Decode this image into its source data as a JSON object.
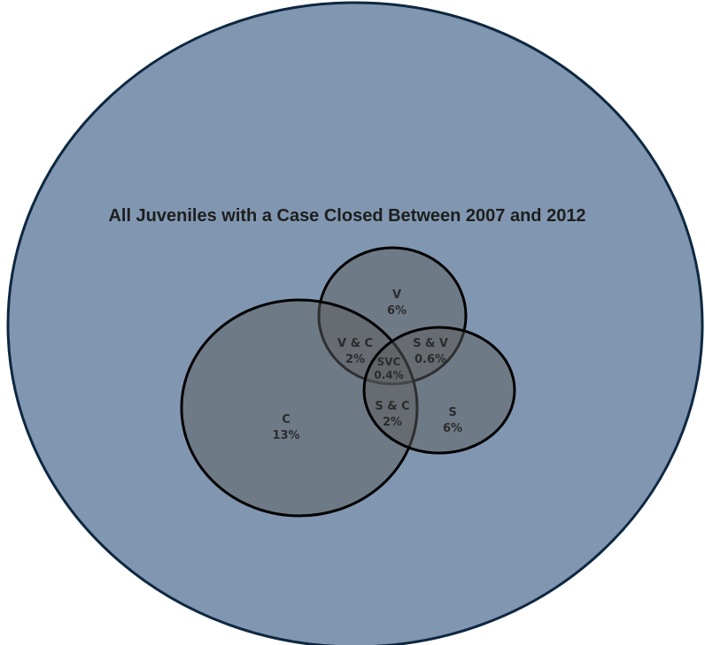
{
  "title": "All Juveniles with a Case Closed Between 2007 and 2012",
  "colors": {
    "universe_fill": "#8197b1",
    "universe_stroke": "#0e2841",
    "set_fill": "#5e5e5e",
    "set_stroke": "#000000",
    "text": "#2b2b2b"
  },
  "sets": [
    {
      "key": "V",
      "label": "V",
      "value": "6%"
    },
    {
      "key": "C",
      "label": "C",
      "value": "13%"
    },
    {
      "key": "S",
      "label": "S",
      "value": "6%"
    }
  ],
  "intersections": [
    {
      "key": "VC",
      "label": "V & C",
      "value": "2%"
    },
    {
      "key": "SV",
      "label": "S & V",
      "value": "0.6%"
    },
    {
      "key": "SVC",
      "label": "SVC",
      "value": "0.4%"
    },
    {
      "key": "SC",
      "label": "S & C",
      "value": "2%"
    }
  ]
}
